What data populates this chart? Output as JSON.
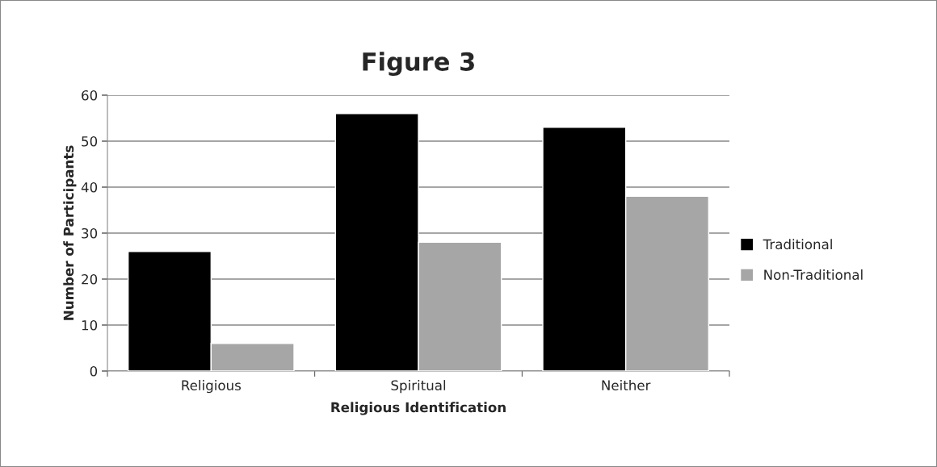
{
  "chart_data": {
    "type": "bar",
    "title": "Figure 3",
    "xlabel": "Religious Identification",
    "ylabel": "Number of Participants",
    "categories": [
      "Religious",
      "Spiritual",
      "Neither"
    ],
    "series": [
      {
        "name": "Traditional",
        "color": "#000000",
        "values": [
          26,
          56,
          53
        ]
      },
      {
        "name": "Non-Traditional",
        "color": "#a6a6a6",
        "values": [
          6,
          28,
          38
        ]
      }
    ],
    "ylim": [
      0,
      60
    ],
    "yticks": [
      0,
      10,
      20,
      30,
      40,
      50,
      60
    ],
    "grid": "y",
    "legend": "right"
  }
}
